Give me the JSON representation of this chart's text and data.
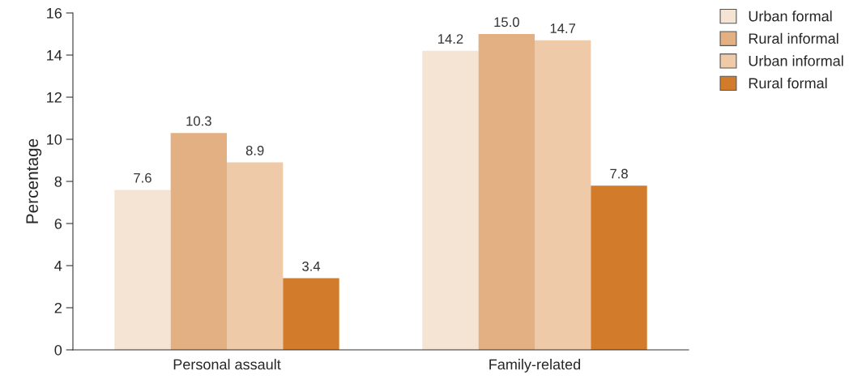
{
  "chart_data": {
    "type": "bar",
    "ylabel": "Percentage",
    "categories": [
      "Personal assault",
      "Family-related"
    ],
    "series": [
      {
        "name": "Urban formal",
        "color": "#f5e3d3",
        "values": [
          7.6,
          14.2
        ],
        "value_labels": [
          "7.6",
          "14.2"
        ]
      },
      {
        "name": "Rural informal",
        "color": "#e3b083",
        "values": [
          10.3,
          15.0
        ],
        "value_labels": [
          "10.3",
          "15.0"
        ]
      },
      {
        "name": "Urban informal",
        "color": "#eecaa8",
        "values": [
          8.9,
          14.7
        ],
        "value_labels": [
          "8.9",
          "14.7"
        ]
      },
      {
        "name": "Rural formal",
        "color": "#d27b2a",
        "values": [
          3.4,
          7.8
        ],
        "value_labels": [
          "3.4",
          "7.8"
        ]
      }
    ],
    "ylim": [
      0,
      16
    ],
    "yticks": [
      0,
      2,
      4,
      6,
      8,
      10,
      12,
      14,
      16
    ],
    "grid": false,
    "legend": "top right"
  }
}
